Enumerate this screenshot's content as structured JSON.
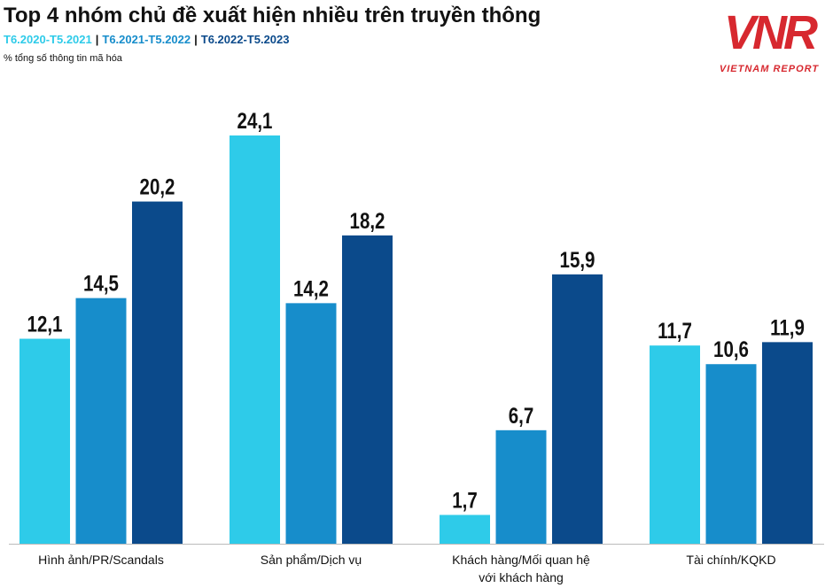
{
  "chart_data": {
    "type": "bar",
    "title": "Top 4 nhóm chủ đề xuất hiện nhiều trên truyền thông",
    "subtitle": "% tổng số thông tin mã hóa",
    "logo": {
      "mark": "VNR",
      "text": "VIETNAM REPORT"
    },
    "categories": [
      "Hình ảnh/PR/Scandals",
      "Sản phẩm/Dịch vụ",
      "Khách hàng/Mối quan hệ với khách hàng",
      "Tài chính/KQKD"
    ],
    "series": [
      {
        "name": "T6.2020-T5.2021",
        "color": "#2ecbe9",
        "values": [
          12.1,
          24.1,
          1.7,
          11.7
        ],
        "value_labels": [
          "12,1",
          "24,1",
          "1,7",
          "11,7"
        ]
      },
      {
        "name": "T6.2021-T5.2022",
        "color": "#178dcb",
        "values": [
          14.5,
          14.2,
          6.7,
          10.6
        ],
        "value_labels": [
          "14,5",
          "14,2",
          "6,7",
          "10,6"
        ]
      },
      {
        "name": "T6.2022-T5.2023",
        "color": "#0b4a8b",
        "values": [
          20.2,
          18.2,
          15.9,
          11.9
        ],
        "value_labels": [
          "20,2",
          "18,2",
          "15,9",
          "11,9"
        ]
      }
    ]
  }
}
